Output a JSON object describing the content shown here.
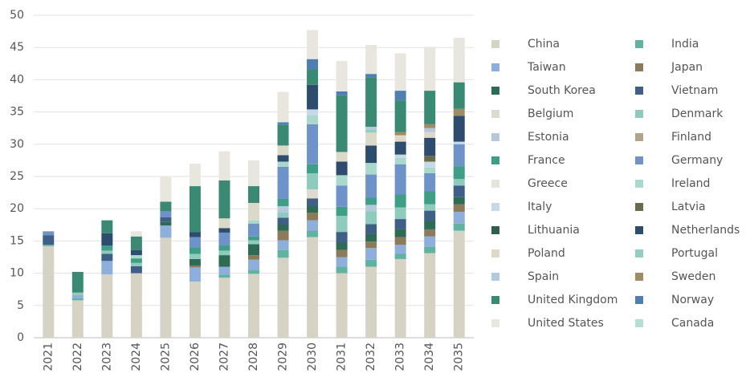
{
  "chart_data": {
    "type": "stacked_bar",
    "categories": [
      "2021",
      "2022",
      "2023",
      "2024",
      "2025",
      "2026",
      "2027",
      "2028",
      "2029",
      "2030",
      "2031",
      "2032",
      "2033",
      "2034",
      "2035"
    ],
    "ylim": [
      0,
      50
    ],
    "yticks": [
      0,
      5,
      10,
      15,
      20,
      25,
      30,
      35,
      40,
      45,
      50
    ],
    "grid": true,
    "legend": "right",
    "series": [
      {
        "name": "China",
        "color": "#d6d2c4",
        "values": [
          14.2,
          5.8,
          9.8,
          10.0,
          15.5,
          8.7,
          9.3,
          9.9,
          12.4,
          15.6,
          10.0,
          11.0,
          12.2,
          13.1,
          16.6
        ]
      },
      {
        "name": "India",
        "color": "#5fb3a0",
        "values": [
          0.2,
          0.3,
          0,
          0,
          0,
          0,
          0.5,
          0.6,
          1.2,
          1.0,
          1.0,
          1.1,
          0.8,
          1.0,
          1.1
        ]
      },
      {
        "name": "Taiwan",
        "color": "#8eaedb",
        "values": [
          0,
          0.5,
          2.1,
          0,
          1.9,
          2.2,
          1.2,
          1.6,
          1.5,
          1.6,
          1.5,
          1.8,
          1.4,
          1.6,
          1.8
        ]
      },
      {
        "name": "Japan",
        "color": "#8c7b5a",
        "values": [
          0,
          0,
          0,
          0,
          0,
          0.3,
          0,
          0.7,
          1.5,
          1.2,
          1.1,
          1.0,
          1.2,
          1.1,
          1.2
        ]
      },
      {
        "name": "South Korea",
        "color": "#2e6b55",
        "values": [
          0,
          0,
          0,
          0,
          0.6,
          1.0,
          1.8,
          1.7,
          1.0,
          1.0,
          1.2,
          1.2,
          1.2,
          1.3,
          1.1
        ]
      },
      {
        "name": "Vietnam",
        "color": "#3f5f86",
        "values": [
          1.5,
          0,
          1.1,
          1.1,
          0.7,
          0,
          0,
          0,
          1.0,
          1.2,
          1.6,
          1.5,
          1.6,
          1.6,
          1.8
        ]
      },
      {
        "name": "Belgium",
        "color": "#dedad0",
        "values": [
          0,
          0,
          0,
          0,
          0,
          0,
          0,
          0,
          0,
          1.4,
          0,
          0,
          0,
          0,
          0
        ]
      },
      {
        "name": "Denmark",
        "color": "#8fcbbd",
        "values": [
          0,
          0.4,
          0.5,
          0.5,
          0,
          0.8,
          0.7,
          0.6,
          0.8,
          2.5,
          2.5,
          2.0,
          1.8,
          1.0,
          1.0
        ]
      },
      {
        "name": "Estonia",
        "color": "#b6c8dc",
        "values": [
          0,
          0,
          0,
          0,
          0,
          0,
          0,
          0,
          1.0,
          0,
          0,
          1.0,
          0,
          0,
          0
        ]
      },
      {
        "name": "Finland",
        "color": "#b0a58a",
        "values": [
          0,
          0,
          0,
          0,
          0,
          0,
          0,
          0,
          0,
          0,
          0,
          0,
          0,
          0,
          0
        ]
      },
      {
        "name": "France",
        "color": "#3e9e86",
        "values": [
          0,
          0,
          0.8,
          0.7,
          0,
          1.0,
          0.8,
          0.6,
          1.2,
          1.4,
          1.4,
          1.1,
          2.0,
          2.0,
          2.0
        ]
      },
      {
        "name": "Germany",
        "color": "#6e93c9",
        "values": [
          0.6,
          0,
          0,
          0,
          0.9,
          1.6,
          2.0,
          2.0,
          4.9,
          6.2,
          3.3,
          3.6,
          4.7,
          2.8,
          3.4
        ]
      },
      {
        "name": "Greece",
        "color": "#e6e4dc",
        "values": [
          0,
          0,
          0,
          0,
          0,
          0,
          0,
          0,
          0,
          0,
          0,
          0,
          0,
          0,
          0
        ]
      },
      {
        "name": "Ireland",
        "color": "#a9d9cd",
        "values": [
          0,
          0,
          0,
          0.5,
          0,
          0,
          0,
          0.5,
          0.8,
          1.4,
          1.6,
          1.8,
          1.0,
          0.9,
          0
        ]
      },
      {
        "name": "Italy",
        "color": "#c7d8e6",
        "values": [
          0,
          0,
          0,
          0,
          0,
          0,
          0,
          0,
          0,
          0.9,
          0,
          0,
          0.5,
          0.9,
          0.4
        ]
      },
      {
        "name": "Latvia",
        "color": "#6b6a4a",
        "values": [
          0,
          0,
          0,
          0,
          0,
          0,
          0,
          0,
          0,
          0,
          0,
          0,
          0,
          0.9,
          0
        ]
      },
      {
        "name": "Lithuania",
        "color": "#2f5f4b",
        "values": [
          0,
          0,
          0,
          0,
          0,
          0,
          0,
          0,
          0,
          0,
          0,
          0,
          0,
          0,
          0
        ]
      },
      {
        "name": "Netherlands",
        "color": "#2d4c6e",
        "values": [
          0,
          0,
          1.9,
          0.8,
          0,
          0.8,
          0.7,
          0,
          1.0,
          3.8,
          2.1,
          2.7,
          2.0,
          2.8,
          4.0
        ]
      },
      {
        "name": "Poland",
        "color": "#dcd9c8",
        "values": [
          0,
          0,
          0,
          0,
          0,
          0,
          1.5,
          2.7,
          1.5,
          0,
          1.5,
          2.0,
          1.0,
          0.9,
          0
        ]
      },
      {
        "name": "Portugal",
        "color": "#93cfc1",
        "values": [
          0,
          0,
          0,
          0,
          0,
          0,
          0,
          0,
          0,
          0,
          0,
          0.5,
          0,
          0,
          0
        ]
      },
      {
        "name": "Spain",
        "color": "#b3c9e0",
        "values": [
          0,
          0,
          0,
          0,
          0,
          0,
          0,
          0,
          0,
          0,
          0,
          0.4,
          0,
          0.6,
          0
        ]
      },
      {
        "name": "Sweden",
        "color": "#a08c63",
        "values": [
          0,
          0,
          0,
          0,
          0,
          0,
          0,
          0,
          0,
          0,
          0,
          0,
          0.5,
          0.6,
          1.1
        ]
      },
      {
        "name": "United Kingdom",
        "color": "#3a8a73",
        "values": [
          0,
          3.2,
          2.0,
          2.1,
          1.5,
          7.1,
          5.9,
          2.6,
          3.2,
          2.4,
          8.8,
          7.7,
          4.9,
          5.2,
          4.1
        ]
      },
      {
        "name": "Norway",
        "color": "#4f7fb0",
        "values": [
          0,
          0,
          0,
          0,
          0,
          0,
          0,
          0,
          0.4,
          1.6,
          0.6,
          0.5,
          1.5,
          0,
          0
        ]
      },
      {
        "name": "United States",
        "color": "#e8e6df",
        "values": [
          0,
          0,
          0,
          0.8,
          3.9,
          3.5,
          4.5,
          4.0,
          4.7,
          4.5,
          4.7,
          4.5,
          5.8,
          6.8,
          6.9
        ]
      },
      {
        "name": "Canada",
        "color": "#b5dfd5",
        "values": [
          0,
          0,
          0,
          0,
          0,
          0,
          0,
          0,
          0,
          0,
          0,
          0,
          0,
          0,
          0
        ]
      }
    ]
  }
}
